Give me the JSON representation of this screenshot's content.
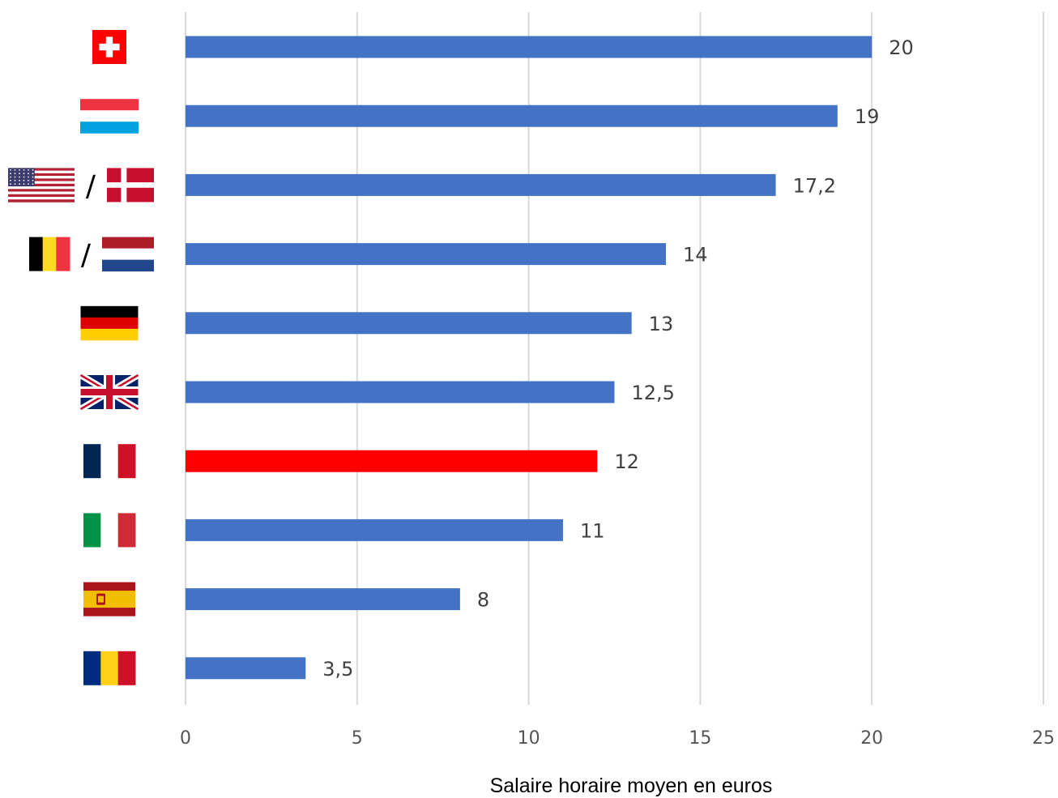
{
  "chart_data": {
    "type": "bar",
    "orientation": "horizontal",
    "xlabel": "Salaire horaire moyen en euros",
    "xlim": [
      0,
      25
    ],
    "xticks": [
      "0",
      "5",
      "10",
      "15",
      "20",
      "25"
    ],
    "grid": true,
    "colors": {
      "default": "#4472C4",
      "highlight": "#FF0000"
    },
    "categories": [
      {
        "flags": [
          "switzerland-flag"
        ],
        "value": 20,
        "label": "20",
        "highlight": false
      },
      {
        "flags": [
          "luxembourg-flag"
        ],
        "value": 19,
        "label": "19",
        "highlight": false
      },
      {
        "flags": [
          "usa-flag",
          "denmark-flag"
        ],
        "value": 17.2,
        "label": "17,2",
        "highlight": false
      },
      {
        "flags": [
          "belgium-flag",
          "netherlands-flag"
        ],
        "value": 14,
        "label": "14",
        "highlight": false
      },
      {
        "flags": [
          "germany-flag"
        ],
        "value": 13,
        "label": "13",
        "highlight": false
      },
      {
        "flags": [
          "uk-flag"
        ],
        "value": 12.5,
        "label": "12,5",
        "highlight": false
      },
      {
        "flags": [
          "france-flag"
        ],
        "value": 12,
        "label": "12",
        "highlight": true
      },
      {
        "flags": [
          "italy-flag"
        ],
        "value": 11,
        "label": "11",
        "highlight": false
      },
      {
        "flags": [
          "spain-flag"
        ],
        "value": 8,
        "label": "8",
        "highlight": false
      },
      {
        "flags": [
          "romania-flag"
        ],
        "value": 3.5,
        "label": "3,5",
        "highlight": false
      }
    ],
    "separator": "/"
  }
}
